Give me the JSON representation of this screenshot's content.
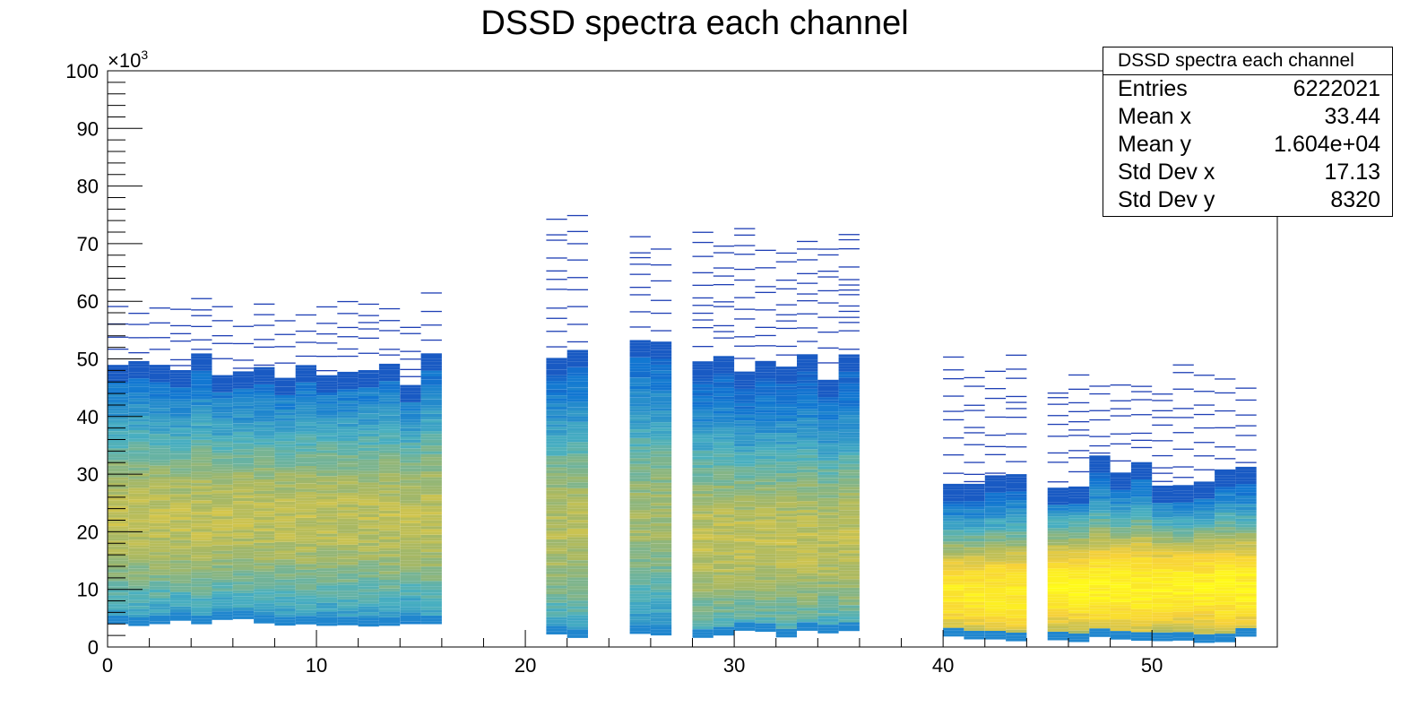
{
  "chart_data": {
    "type": "heatmap",
    "title": "DSSD spectra each channel",
    "xlabel": "",
    "ylabel": "",
    "xlim": [
      0,
      56
    ],
    "ylim": [
      0,
      100000
    ],
    "y_multiplier_label": "×10",
    "y_multiplier_exponent": "3",
    "x_ticks": [
      0,
      10,
      20,
      30,
      40,
      50
    ],
    "x_tick_labels": [
      "0",
      "10",
      "20",
      "30",
      "40",
      "50"
    ],
    "y_ticks": [
      0,
      10000,
      20000,
      30000,
      40000,
      50000,
      60000,
      70000,
      80000,
      90000,
      100000
    ],
    "y_tick_labels": [
      "0",
      "10",
      "20",
      "30",
      "40",
      "50",
      "60",
      "70",
      "80",
      "90",
      "100"
    ],
    "channel_groups": [
      {
        "channels": [
          0,
          1,
          2,
          3,
          4,
          5,
          6,
          7,
          8,
          9,
          10,
          11,
          12,
          13,
          14,
          15
        ],
        "y_low": 3500,
        "y_high": 48000,
        "y_max": 58000,
        "peak_y": 22000,
        "intensity": 0.62
      },
      {
        "channels": [
          21,
          22
        ],
        "y_low": 1500,
        "y_high": 52000,
        "y_max": 72000,
        "peak_y": 20000,
        "intensity": 0.6
      },
      {
        "channels": [
          25,
          26
        ],
        "y_low": 1500,
        "y_high": 51000,
        "y_max": 69000,
        "peak_y": 22000,
        "intensity": 0.55
      },
      {
        "channels": [
          28,
          29,
          30,
          31,
          32,
          33,
          34,
          35
        ],
        "y_low": 1500,
        "y_high": 48000,
        "y_max": 70000,
        "peak_y": 18000,
        "intensity": 0.62
      },
      {
        "channels": [
          40,
          41,
          42,
          43
        ],
        "y_low": 500,
        "y_high": 30000,
        "y_max": 47000,
        "peak_y": 9000,
        "intensity": 0.85
      },
      {
        "channels": [
          45,
          46,
          47,
          48,
          49,
          50,
          51,
          52,
          53,
          54
        ],
        "y_low": 500,
        "y_high": 30000,
        "y_max": 45000,
        "peak_y": 10000,
        "intensity": 0.88
      }
    ],
    "colors": {
      "low": "#1f3fb5",
      "mid": "#4ab0c0",
      "midhigh": "#a8b864",
      "high": "#f7d13a",
      "peak": "#fffb1a"
    }
  },
  "stats_box": {
    "title": "DSSD spectra each channel",
    "rows": [
      {
        "label": "Entries",
        "value": "6222021"
      },
      {
        "label": "Mean x",
        "value": "33.44"
      },
      {
        "label": "Mean y",
        "value": "1.604e+04"
      },
      {
        "label": "Std Dev x",
        "value": "17.13"
      },
      {
        "label": "Std Dev y",
        "value": "8320"
      }
    ]
  }
}
